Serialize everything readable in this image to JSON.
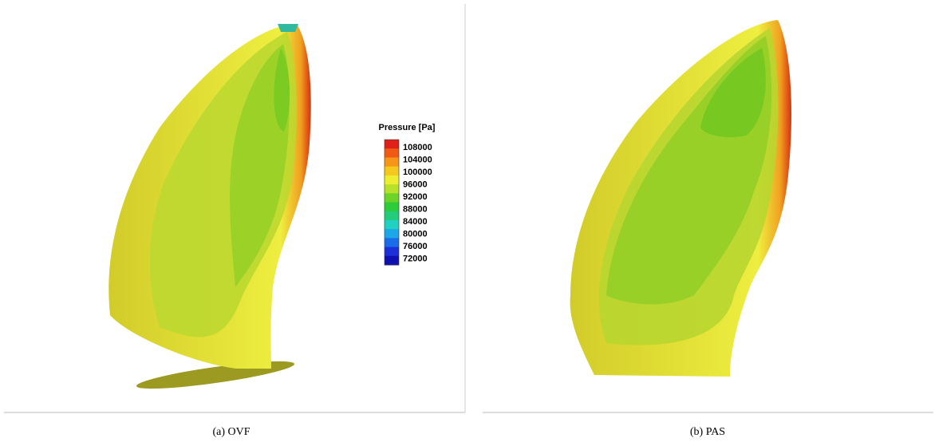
{
  "legend": {
    "title": "Pressure [Pa]",
    "labels": [
      108000,
      104000,
      100000,
      96000,
      92000,
      88000,
      84000,
      80000,
      76000,
      72000
    ]
  },
  "panels": [
    {
      "caption": "(a) OVF"
    },
    {
      "caption": "(b) PAS"
    }
  ]
}
